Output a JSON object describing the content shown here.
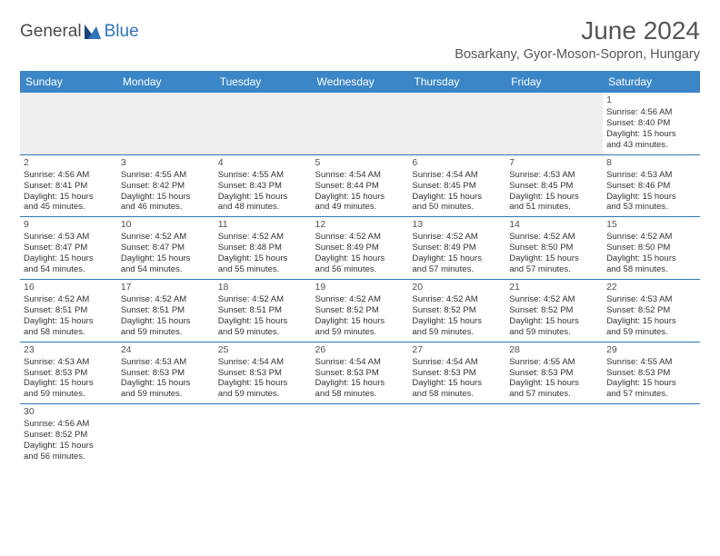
{
  "logo": {
    "word1": "General",
    "word2": "Blue"
  },
  "title": "June 2024",
  "location": "Bosarkany, Gyor-Moson-Sopron, Hungary",
  "colors": {
    "header_bg": "#3b86c6",
    "header_text": "#ffffff",
    "blank_bg": "#eeeeee",
    "border": "#2f76b8",
    "title_text": "#555555",
    "body_text": "#333333",
    "logo_gray": "#4a4a4a",
    "logo_blue": "#2f76b8"
  },
  "day_headers": [
    "Sunday",
    "Monday",
    "Tuesday",
    "Wednesday",
    "Thursday",
    "Friday",
    "Saturday"
  ],
  "weeks": [
    [
      null,
      null,
      null,
      null,
      null,
      null,
      {
        "n": "1",
        "sr": "4:56 AM",
        "ss": "8:40 PM",
        "dl1": "15 hours",
        "dl2": "and 43 minutes."
      }
    ],
    [
      {
        "n": "2",
        "sr": "4:56 AM",
        "ss": "8:41 PM",
        "dl1": "15 hours",
        "dl2": "and 45 minutes."
      },
      {
        "n": "3",
        "sr": "4:55 AM",
        "ss": "8:42 PM",
        "dl1": "15 hours",
        "dl2": "and 46 minutes."
      },
      {
        "n": "4",
        "sr": "4:55 AM",
        "ss": "8:43 PM",
        "dl1": "15 hours",
        "dl2": "and 48 minutes."
      },
      {
        "n": "5",
        "sr": "4:54 AM",
        "ss": "8:44 PM",
        "dl1": "15 hours",
        "dl2": "and 49 minutes."
      },
      {
        "n": "6",
        "sr": "4:54 AM",
        "ss": "8:45 PM",
        "dl1": "15 hours",
        "dl2": "and 50 minutes."
      },
      {
        "n": "7",
        "sr": "4:53 AM",
        "ss": "8:45 PM",
        "dl1": "15 hours",
        "dl2": "and 51 minutes."
      },
      {
        "n": "8",
        "sr": "4:53 AM",
        "ss": "8:46 PM",
        "dl1": "15 hours",
        "dl2": "and 53 minutes."
      }
    ],
    [
      {
        "n": "9",
        "sr": "4:53 AM",
        "ss": "8:47 PM",
        "dl1": "15 hours",
        "dl2": "and 54 minutes."
      },
      {
        "n": "10",
        "sr": "4:52 AM",
        "ss": "8:47 PM",
        "dl1": "15 hours",
        "dl2": "and 54 minutes."
      },
      {
        "n": "11",
        "sr": "4:52 AM",
        "ss": "8:48 PM",
        "dl1": "15 hours",
        "dl2": "and 55 minutes."
      },
      {
        "n": "12",
        "sr": "4:52 AM",
        "ss": "8:49 PM",
        "dl1": "15 hours",
        "dl2": "and 56 minutes."
      },
      {
        "n": "13",
        "sr": "4:52 AM",
        "ss": "8:49 PM",
        "dl1": "15 hours",
        "dl2": "and 57 minutes."
      },
      {
        "n": "14",
        "sr": "4:52 AM",
        "ss": "8:50 PM",
        "dl1": "15 hours",
        "dl2": "and 57 minutes."
      },
      {
        "n": "15",
        "sr": "4:52 AM",
        "ss": "8:50 PM",
        "dl1": "15 hours",
        "dl2": "and 58 minutes."
      }
    ],
    [
      {
        "n": "16",
        "sr": "4:52 AM",
        "ss": "8:51 PM",
        "dl1": "15 hours",
        "dl2": "and 58 minutes."
      },
      {
        "n": "17",
        "sr": "4:52 AM",
        "ss": "8:51 PM",
        "dl1": "15 hours",
        "dl2": "and 59 minutes."
      },
      {
        "n": "18",
        "sr": "4:52 AM",
        "ss": "8:51 PM",
        "dl1": "15 hours",
        "dl2": "and 59 minutes."
      },
      {
        "n": "19",
        "sr": "4:52 AM",
        "ss": "8:52 PM",
        "dl1": "15 hours",
        "dl2": "and 59 minutes."
      },
      {
        "n": "20",
        "sr": "4:52 AM",
        "ss": "8:52 PM",
        "dl1": "15 hours",
        "dl2": "and 59 minutes."
      },
      {
        "n": "21",
        "sr": "4:52 AM",
        "ss": "8:52 PM",
        "dl1": "15 hours",
        "dl2": "and 59 minutes."
      },
      {
        "n": "22",
        "sr": "4:53 AM",
        "ss": "8:52 PM",
        "dl1": "15 hours",
        "dl2": "and 59 minutes."
      }
    ],
    [
      {
        "n": "23",
        "sr": "4:53 AM",
        "ss": "8:53 PM",
        "dl1": "15 hours",
        "dl2": "and 59 minutes."
      },
      {
        "n": "24",
        "sr": "4:53 AM",
        "ss": "8:53 PM",
        "dl1": "15 hours",
        "dl2": "and 59 minutes."
      },
      {
        "n": "25",
        "sr": "4:54 AM",
        "ss": "8:53 PM",
        "dl1": "15 hours",
        "dl2": "and 59 minutes."
      },
      {
        "n": "26",
        "sr": "4:54 AM",
        "ss": "8:53 PM",
        "dl1": "15 hours",
        "dl2": "and 58 minutes."
      },
      {
        "n": "27",
        "sr": "4:54 AM",
        "ss": "8:53 PM",
        "dl1": "15 hours",
        "dl2": "and 58 minutes."
      },
      {
        "n": "28",
        "sr": "4:55 AM",
        "ss": "8:53 PM",
        "dl1": "15 hours",
        "dl2": "and 57 minutes."
      },
      {
        "n": "29",
        "sr": "4:55 AM",
        "ss": "8:53 PM",
        "dl1": "15 hours",
        "dl2": "and 57 minutes."
      }
    ],
    [
      {
        "n": "30",
        "sr": "4:56 AM",
        "ss": "8:52 PM",
        "dl1": "15 hours",
        "dl2": "and 56 minutes."
      },
      null,
      null,
      null,
      null,
      null,
      null
    ]
  ],
  "labels": {
    "sunrise": "Sunrise:",
    "sunset": "Sunset:",
    "daylight": "Daylight:"
  }
}
